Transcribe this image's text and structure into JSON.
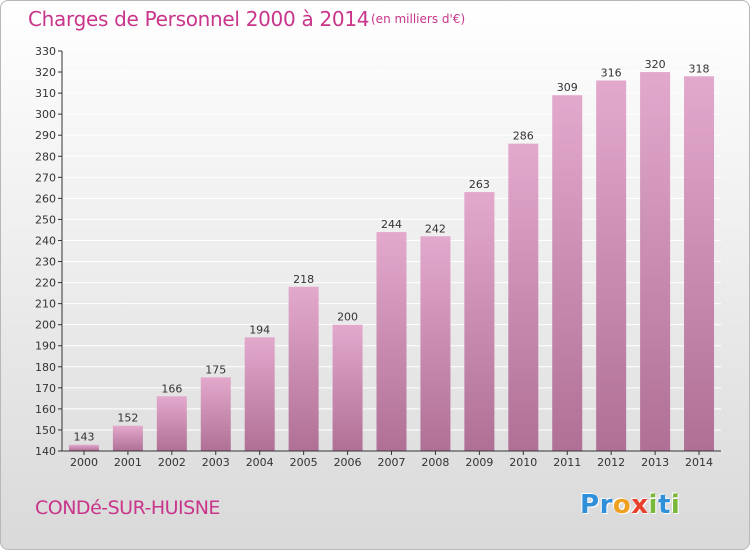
{
  "header": {
    "title": "Charges de Personnel 2000 à 2014",
    "subtitle": "(en milliers d'€)"
  },
  "footer": {
    "town": "CONDé-SUR-HUISNE",
    "logo_letters": [
      {
        "char": "P",
        "color": "#2f8fd8"
      },
      {
        "char": "r",
        "color": "#2f8fd8"
      },
      {
        "char": "o",
        "color": "#f0a020"
      },
      {
        "char": "x",
        "color": "#e8402a"
      },
      {
        "char": "i",
        "color": "#7ab83a"
      },
      {
        "char": "t",
        "color": "#2f8fd8"
      },
      {
        "char": "i",
        "color": "#7ab83a"
      }
    ]
  },
  "colors": {
    "title": "#c8358a",
    "bar_top": "#e3a9cd",
    "bar_bottom": "#b07095",
    "grid": "#ffffff",
    "axis": "#333333"
  },
  "chart_data": {
    "type": "bar",
    "categories": [
      "2000",
      "2001",
      "2002",
      "2003",
      "2004",
      "2005",
      "2006",
      "2007",
      "2008",
      "2009",
      "2010",
      "2011",
      "2012",
      "2013",
      "2014"
    ],
    "values": [
      143,
      152,
      166,
      175,
      194,
      218,
      200,
      244,
      242,
      263,
      286,
      309,
      316,
      320,
      318
    ],
    "ylim": [
      140,
      330
    ],
    "ytick_step": 10,
    "grid": true,
    "data_labels": true
  }
}
